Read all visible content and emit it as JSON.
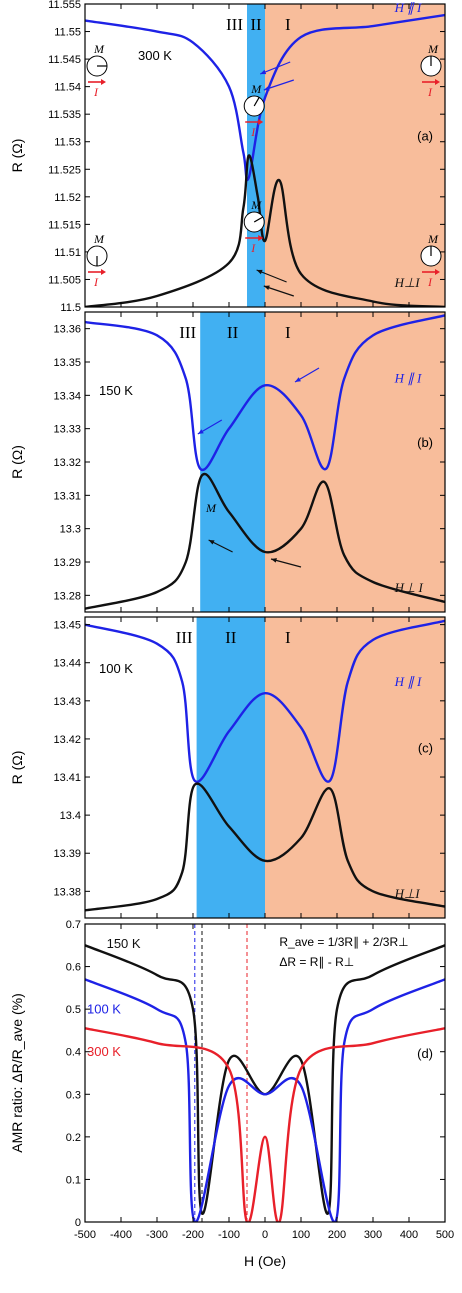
{
  "figure": {
    "colors": {
      "region_I": "#f8bd9b",
      "region_II": "#41b0f2",
      "parallel": "#1e22e6",
      "perp": "#111111",
      "t300": "#e8202a",
      "t100": "#1e22e6",
      "t150": "#111111",
      "arrow": "#e8202a"
    },
    "panels": [
      {
        "id": "a",
        "label": "(a)",
        "ylabel": "R (Ω)",
        "temperature": "300 K",
        "ylim": [
          11.5,
          11.555
        ],
        "yticks": [
          "11.5",
          "11.505",
          "11.51",
          "11.515",
          "11.52",
          "11.525",
          "11.53",
          "11.535",
          "11.54",
          "11.545",
          "11.55",
          "11.555"
        ],
        "region_labels": [
          "III",
          "II",
          "I"
        ],
        "region_II_H": [
          -50,
          0
        ],
        "parallel_label": "H ∥ I",
        "perp_label": "H⊥I",
        "chart_data": {
          "type": "line",
          "x_range": [
            -500,
            500
          ],
          "series": [
            {
              "name": "H ∥ I",
              "color": "#1e22e6",
              "x": [
                -500,
                -300,
                -200,
                -100,
                -60,
                -45,
                0,
                100,
                300,
                500
              ],
              "y": [
                11.552,
                11.55,
                11.548,
                11.54,
                11.528,
                11.5235,
                11.538,
                11.549,
                11.551,
                11.553
              ]
            },
            {
              "name": "H⊥I",
              "color": "#111111",
              "x": [
                -500,
                -300,
                -100,
                -60,
                -45,
                -20,
                0,
                40,
                100,
                300,
                500
              ],
              "y": [
                11.5,
                11.502,
                11.508,
                11.518,
                11.5275,
                11.52,
                11.512,
                11.523,
                11.506,
                11.501,
                11.5
              ]
            }
          ]
        },
        "diagram_labels": {
          "M": "M",
          "I": "I"
        }
      },
      {
        "id": "b",
        "label": "(b)",
        "ylabel": "R (Ω)",
        "temperature": "150 K",
        "ylim": [
          13.275,
          13.365
        ],
        "yticks": [
          "13.28",
          "13.29",
          "13.3",
          "13.31",
          "13.32",
          "13.33",
          "13.34",
          "13.35",
          "13.36"
        ],
        "region_labels": [
          "III",
          "II",
          "I"
        ],
        "region_II_H": [
          -180,
          0
        ],
        "parallel_label": "H ∥ I",
        "perp_label": "H⊥ I",
        "annotation": "M",
        "chart_data": {
          "type": "line",
          "x_range": [
            -500,
            500
          ],
          "series": [
            {
              "name": "H ∥ I",
              "color": "#1e22e6",
              "x": [
                -500,
                -300,
                -220,
                -180,
                -100,
                0,
                100,
                170,
                220,
                300,
                500
              ],
              "y": [
                13.362,
                13.358,
                13.345,
                13.318,
                13.33,
                13.343,
                13.334,
                13.318,
                13.345,
                13.358,
                13.364
              ]
            },
            {
              "name": "H⊥ I",
              "color": "#111111",
              "x": [
                -500,
                -300,
                -220,
                -175,
                -100,
                0,
                100,
                165,
                220,
                300,
                500
              ],
              "y": [
                13.276,
                13.281,
                13.29,
                13.316,
                13.305,
                13.293,
                13.3,
                13.314,
                13.292,
                13.284,
                13.278
              ]
            }
          ]
        }
      },
      {
        "id": "c",
        "label": "(c)",
        "ylabel": "R (Ω)",
        "temperature": "100 K",
        "ylim": [
          13.373,
          13.452
        ],
        "yticks": [
          "13.38",
          "13.39",
          "13.4",
          "13.41",
          "13.42",
          "13.43",
          "13.44",
          "13.45"
        ],
        "region_labels": [
          "III",
          "II",
          "I"
        ],
        "region_II_H": [
          -190,
          0
        ],
        "parallel_label": "H ∥ I",
        "perp_label": "H⊥I",
        "chart_data": {
          "type": "line",
          "x_range": [
            -500,
            500
          ],
          "series": [
            {
              "name": "H ∥ I",
              "color": "#1e22e6",
              "x": [
                -500,
                -300,
                -230,
                -195,
                -100,
                0,
                100,
                180,
                230,
                300,
                500
              ],
              "y": [
                13.45,
                13.445,
                13.435,
                13.409,
                13.422,
                13.432,
                13.423,
                13.409,
                13.435,
                13.446,
                13.451
              ]
            },
            {
              "name": "H⊥I",
              "color": "#111111",
              "x": [
                -500,
                -300,
                -230,
                -195,
                -100,
                0,
                100,
                180,
                230,
                300,
                500
              ],
              "y": [
                13.375,
                13.378,
                13.385,
                13.408,
                13.397,
                13.388,
                13.394,
                13.407,
                13.388,
                13.38,
                13.376
              ]
            }
          ]
        }
      },
      {
        "id": "d",
        "label": "(d)",
        "ylabel": "AMR ratio: ΔR/R_ave (%)",
        "ylim": [
          0,
          0.7
        ],
        "yticks": [
          "0",
          "0.1",
          "0.2",
          "0.3",
          "0.4",
          "0.5",
          "0.6",
          "0.7"
        ],
        "formula_1": "R_ave = 1/3R∥ + 2/3R⊥",
        "formula_2": "ΔR = R∥ - R⊥",
        "dashed_H": [
          -195,
          -175,
          -50
        ],
        "chart_data": {
          "type": "line",
          "x_range": [
            -500,
            500
          ],
          "series": [
            {
              "name": "150 K",
              "color": "#111111",
              "x": [
                -500,
                -300,
                -200,
                -175,
                -100,
                0,
                100,
                175,
                200,
                300,
                500
              ],
              "y": [
                0.65,
                0.58,
                0.5,
                0.02,
                0.38,
                0.3,
                0.38,
                0.02,
                0.5,
                0.58,
                0.65
              ]
            },
            {
              "name": "100 K",
              "color": "#1e22e6",
              "x": [
                -500,
                -300,
                -220,
                -195,
                -100,
                0,
                100,
                195,
                220,
                300,
                500
              ],
              "y": [
                0.57,
                0.5,
                0.42,
                0.0,
                0.32,
                0.3,
                0.32,
                0.0,
                0.42,
                0.5,
                0.57
              ]
            },
            {
              "name": "300 K",
              "color": "#e8202a",
              "x": [
                -500,
                -300,
                -100,
                -50,
                0,
                40,
                100,
                300,
                500
              ],
              "y": [
                0.455,
                0.42,
                0.36,
                0.0,
                0.2,
                0.0,
                0.36,
                0.42,
                0.455
              ]
            }
          ]
        }
      }
    ],
    "xaxis": {
      "label": "H (Oe)",
      "range": [
        -500,
        500
      ],
      "ticks": [
        "-500",
        "-400",
        "-300",
        "-200",
        "-100",
        "0",
        "100",
        "200",
        "300",
        "400",
        "500"
      ]
    }
  }
}
